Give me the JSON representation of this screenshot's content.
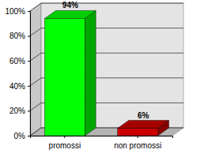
{
  "chart_data": {
    "type": "bar",
    "categories": [
      "promossi",
      "non promossi"
    ],
    "values": [
      94,
      6
    ],
    "value_labels": [
      "94%",
      "6%"
    ],
    "colors": [
      "#00ff00",
      "#cc0000"
    ],
    "ylim": [
      0,
      100
    ],
    "yticks": [
      {
        "value": 0,
        "label": "0%"
      },
      {
        "value": 20,
        "label": "20%"
      },
      {
        "value": 40,
        "label": "40%"
      },
      {
        "value": 60,
        "label": "60%"
      },
      {
        "value": 80,
        "label": "80%"
      },
      {
        "value": 100,
        "label": "100%"
      }
    ],
    "grid": true,
    "data_labels": true
  }
}
